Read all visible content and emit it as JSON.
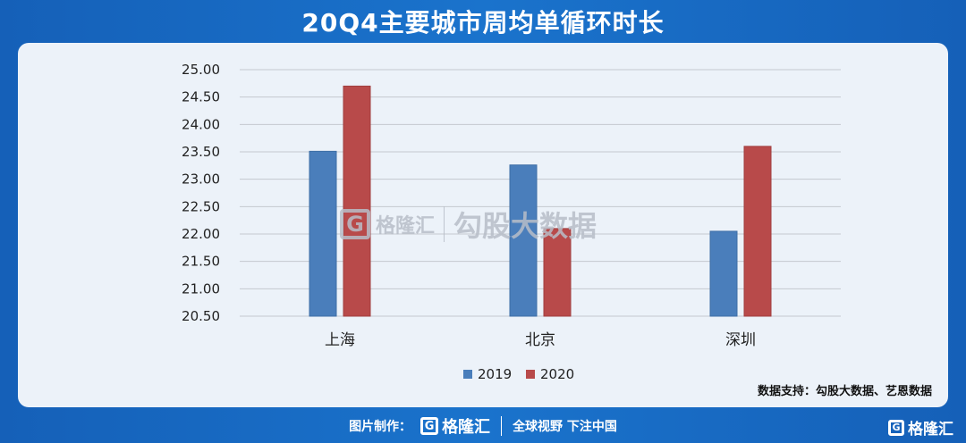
{
  "header": {
    "title": "20Q4主要城市周均单循环时长"
  },
  "watermark": {
    "logo_letter": "G",
    "brand": "格隆汇",
    "text": "勾股大数据"
  },
  "source": "数据支持：勾股大数据、艺恩数据",
  "footer": {
    "prefix": "图片制作：",
    "logo_letter": "G",
    "brand": "格隆汇",
    "slogan": "全球视野 下注中国"
  },
  "corner_logo": {
    "letter": "G",
    "brand": "格隆汇"
  },
  "colors": {
    "series_2019": "#4a7ebb",
    "series_2020": "#b84a4a"
  },
  "chart_data": {
    "type": "bar",
    "categories": [
      "上海",
      "北京",
      "深圳"
    ],
    "series": [
      {
        "name": "2019",
        "values": [
          23.51,
          23.26,
          22.05
        ]
      },
      {
        "name": "2020",
        "values": [
          24.7,
          22.1,
          23.6
        ]
      }
    ],
    "ylim": [
      20.5,
      25.0
    ],
    "yticks": [
      "20.50",
      "21.00",
      "21.50",
      "22.00",
      "22.50",
      "23.00",
      "23.50",
      "24.00",
      "24.50",
      "25.00"
    ],
    "grid": true,
    "legend": "bottom"
  }
}
